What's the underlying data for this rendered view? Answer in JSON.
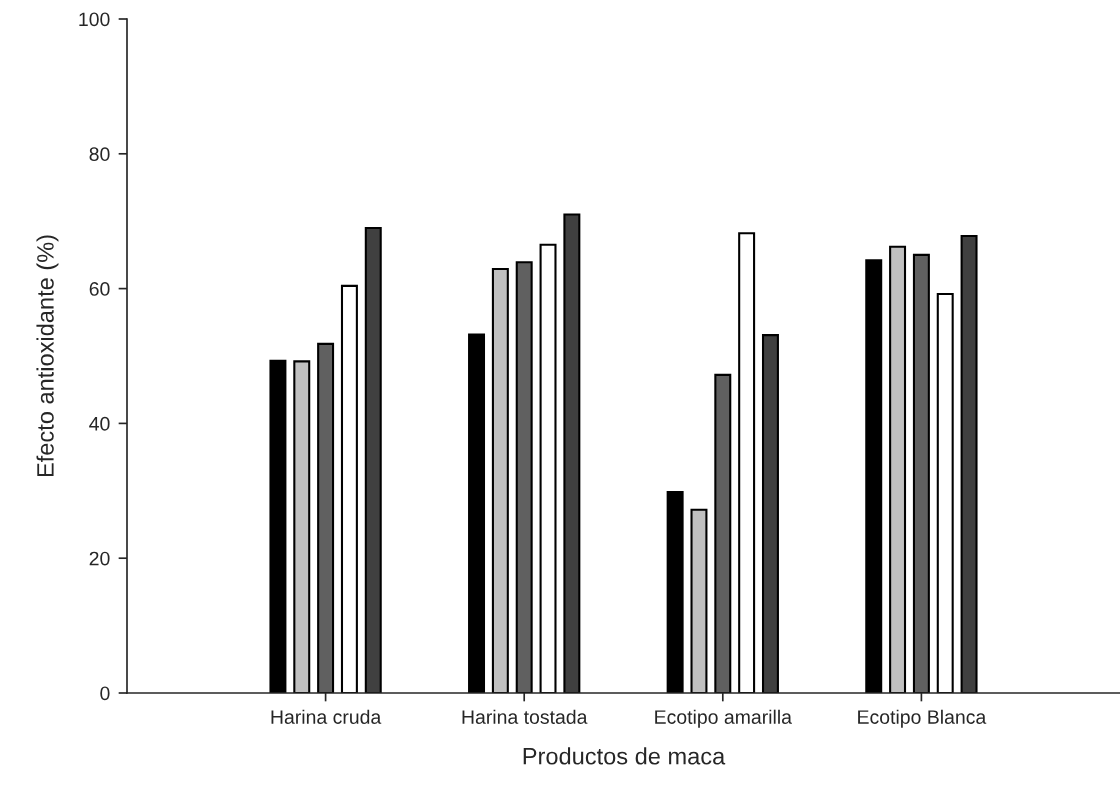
{
  "chart_data": {
    "type": "bar",
    "xlabel": "Productos de maca",
    "ylabel": "Efecto antioxidante (%)",
    "categories": [
      "Harina cruda",
      "Harina tostada",
      "Ecotipo amarilla",
      "Ecotipo Blanca"
    ],
    "series": [
      {
        "color": "#000000",
        "values": [
          49.3,
          53.2,
          29.8,
          64.2
        ]
      },
      {
        "color": "#c0c0c0",
        "values": [
          49.2,
          62.9,
          27.2,
          66.2
        ]
      },
      {
        "color": "#606060",
        "values": [
          51.8,
          63.9,
          47.2,
          65.0
        ]
      },
      {
        "color": "#ffffff",
        "values": [
          60.4,
          66.5,
          68.2,
          59.2
        ]
      },
      {
        "color": "#404040",
        "values": [
          69.0,
          71.0,
          53.1,
          67.8
        ]
      }
    ],
    "ylim": [
      0,
      100
    ],
    "yticks": [
      0,
      20,
      40,
      60,
      80,
      100
    ],
    "grid": false,
    "legend": false
  }
}
